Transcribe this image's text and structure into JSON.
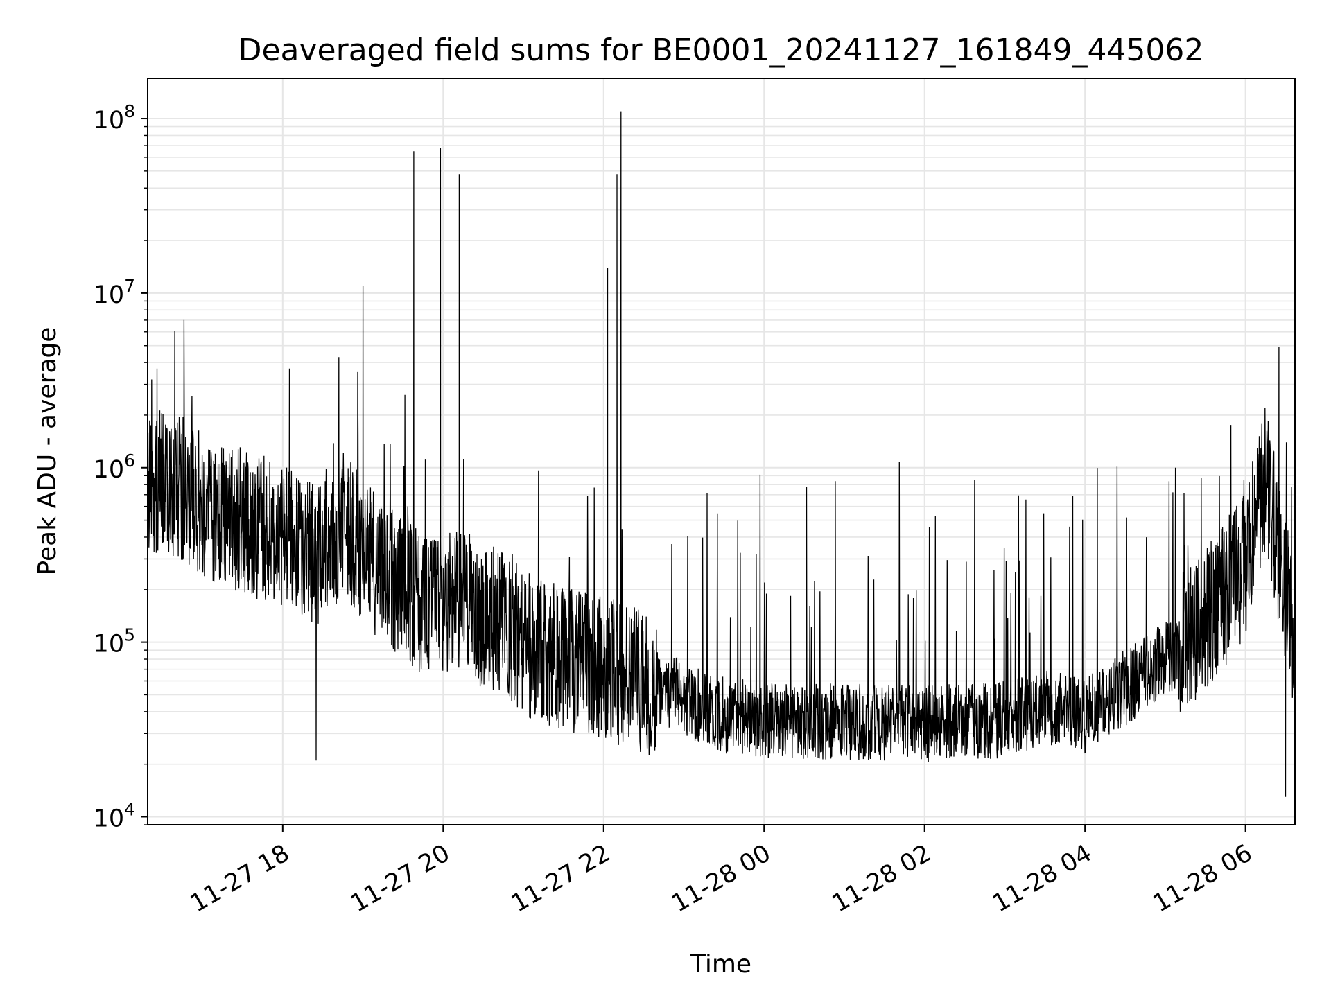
{
  "chart_data": {
    "type": "line",
    "title": "Deaveraged field sums for BE0001_20241127_161849_445062",
    "xlabel": "Time",
    "ylabel": "Peak ADU - average",
    "yscale": "log",
    "xlim": [
      "2024-11-27 16:19",
      "2024-11-28 06:37"
    ],
    "ylim": [
      9000,
      170000000
    ],
    "grid": true,
    "line_color": "#000000",
    "grid_color": "#e6e6e6",
    "x_ticks": [
      {
        "value": "2024-11-27 18:00",
        "label": "11-27 18"
      },
      {
        "value": "2024-11-27 20:00",
        "label": "11-27 20"
      },
      {
        "value": "2024-11-27 22:00",
        "label": "11-27 22"
      },
      {
        "value": "2024-11-28 00:00",
        "label": "11-28 00"
      },
      {
        "value": "2024-11-28 02:00",
        "label": "11-28 02"
      },
      {
        "value": "2024-11-28 04:00",
        "label": "11-28 04"
      },
      {
        "value": "2024-11-28 06:00",
        "label": "11-28 06"
      }
    ],
    "y_ticks": [
      {
        "value": 10000,
        "base": "10",
        "exp": "4"
      },
      {
        "value": 100000,
        "base": "10",
        "exp": "5"
      },
      {
        "value": 1000000,
        "base": "10",
        "exp": "6"
      },
      {
        "value": 10000000,
        "base": "10",
        "exp": "7"
      },
      {
        "value": 100000000,
        "base": "10",
        "exp": "8"
      }
    ],
    "series": [
      {
        "x": [
          "2024-11-27 16:19",
          "2024-11-27 16:30",
          "2024-11-27 16:45",
          "2024-11-27 17:00",
          "2024-11-27 17:15",
          "2024-11-27 17:30",
          "2024-11-27 17:45",
          "2024-11-27 18:00",
          "2024-11-27 18:15",
          "2024-11-27 18:30",
          "2024-11-27 18:45",
          "2024-11-27 19:00",
          "2024-11-27 19:15",
          "2024-11-27 19:30",
          "2024-11-27 19:45",
          "2024-11-27 20:00",
          "2024-11-27 20:15",
          "2024-11-27 20:30",
          "2024-11-27 20:45",
          "2024-11-27 21:00",
          "2024-11-27 21:30",
          "2024-11-27 22:00",
          "2024-11-27 22:30",
          "2024-11-27 23:00",
          "2024-11-27 23:30",
          "2024-11-28 00:00",
          "2024-11-28 01:00",
          "2024-11-28 02:00",
          "2024-11-28 03:00",
          "2024-11-28 03:30",
          "2024-11-28 04:00",
          "2024-11-28 04:30",
          "2024-11-28 05:00",
          "2024-11-28 05:30",
          "2024-11-28 06:00",
          "2024-11-28 06:15",
          "2024-11-28 06:37"
        ],
        "y": [
          700000,
          900000,
          750000,
          600000,
          550000,
          500000,
          450000,
          420000,
          330000,
          300000,
          500000,
          350000,
          250000,
          200000,
          170000,
          160000,
          170000,
          140000,
          130000,
          100000,
          80000,
          70000,
          60000,
          48000,
          38000,
          36000,
          35000,
          34000,
          36000,
          42000,
          38000,
          55000,
          80000,
          130000,
          280000,
          900000,
          100000
        ]
      }
    ],
    "peaks": [
      {
        "x": "2024-11-27 16:22",
        "y": 3200000
      },
      {
        "x": "2024-11-27 16:26",
        "y": 3700000
      },
      {
        "x": "2024-11-27 18:05",
        "y": 3700000
      },
      {
        "x": "2024-11-27 18:25",
        "y": 21000
      },
      {
        "x": "2024-11-27 18:42",
        "y": 4300000
      },
      {
        "x": "2024-11-27 19:00",
        "y": 11000000
      },
      {
        "x": "2024-11-27 19:38",
        "y": 65000000
      },
      {
        "x": "2024-11-27 19:58",
        "y": 68000000
      },
      {
        "x": "2024-11-27 20:12",
        "y": 48000000
      },
      {
        "x": "2024-11-27 22:03",
        "y": 14000000
      },
      {
        "x": "2024-11-27 22:10",
        "y": 48000000
      },
      {
        "x": "2024-11-27 22:13",
        "y": 110000000
      },
      {
        "x": "2024-11-28 06:25",
        "y": 4900000
      },
      {
        "x": "2024-11-28 06:30",
        "y": 13000
      }
    ]
  }
}
